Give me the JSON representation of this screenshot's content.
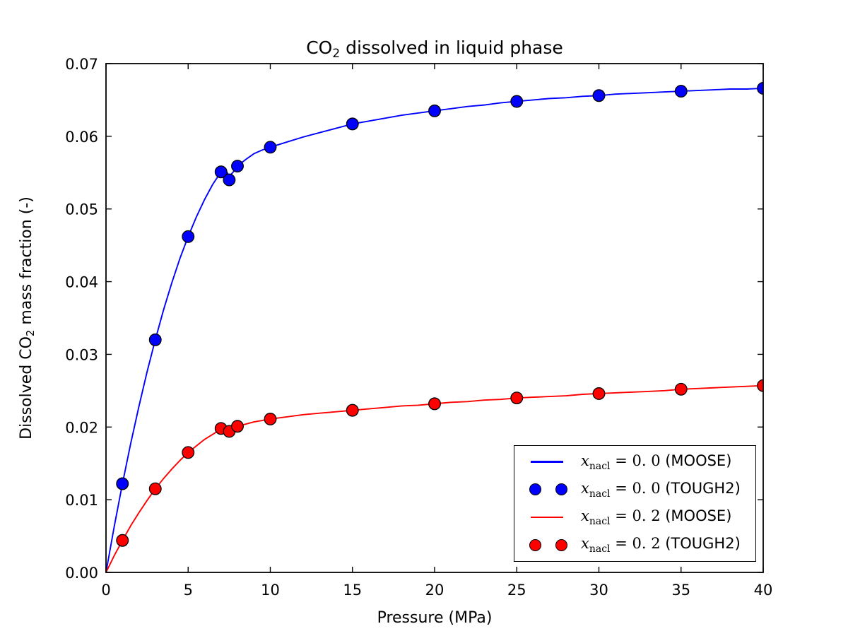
{
  "chart_data": {
    "type": "line",
    "title_prefix": "CO",
    "title_sub": "2",
    "title_suffix": " dissolved in liquid phase",
    "xlabel": "Pressure (MPa)",
    "ylabel_prefix": "Dissolved CO",
    "ylabel_sub": "2",
    "ylabel_suffix": " mass fraction (-)",
    "xlim": [
      0,
      40
    ],
    "ylim": [
      0.0,
      0.07
    ],
    "grid": false,
    "xticks": {
      "values": [
        0,
        5,
        10,
        15,
        20,
        25,
        30,
        35,
        40
      ],
      "labels": [
        "0",
        "5",
        "10",
        "15",
        "20",
        "25",
        "30",
        "35",
        "40"
      ]
    },
    "yticks": {
      "values": [
        0.0,
        0.01,
        0.02,
        0.03,
        0.04,
        0.05,
        0.06,
        0.07
      ],
      "labels": [
        "0.00",
        "0.01",
        "0.02",
        "0.03",
        "0.04",
        "0.05",
        "0.06",
        "0.07"
      ]
    },
    "colors": {
      "xnacl0": "#0000ff",
      "xnacl02": "#ff0000",
      "marker_edge": "#000000"
    },
    "series": [
      {
        "name": "xnacl = 0.0 (MOOSE)",
        "style": "line",
        "color": "#0000ff",
        "x": [
          0,
          0.5,
          1,
          1.5,
          2,
          2.5,
          3,
          3.5,
          4,
          4.5,
          5,
          5.5,
          6,
          6.5,
          7,
          7.25,
          7.5,
          7.75,
          8,
          8.5,
          9,
          9.5,
          10,
          11,
          12,
          13,
          14,
          15,
          16,
          17,
          18,
          19,
          20,
          21,
          22,
          23,
          24,
          25,
          26,
          27,
          28,
          29,
          30,
          31,
          32,
          33,
          34,
          35,
          36,
          37,
          38,
          39,
          40
        ],
        "y": [
          0,
          0.0063,
          0.0122,
          0.0177,
          0.0228,
          0.0276,
          0.032,
          0.0361,
          0.0398,
          0.0432,
          0.0462,
          0.0489,
          0.0513,
          0.0534,
          0.0551,
          0.0555,
          0.0545,
          0.0551,
          0.0559,
          0.0568,
          0.0576,
          0.0581,
          0.0585,
          0.0592,
          0.0599,
          0.0605,
          0.0611,
          0.0617,
          0.0621,
          0.0625,
          0.0629,
          0.0632,
          0.0635,
          0.0638,
          0.0641,
          0.0643,
          0.0646,
          0.0648,
          0.065,
          0.0652,
          0.0653,
          0.0655,
          0.0656,
          0.0658,
          0.0659,
          0.066,
          0.0661,
          0.0662,
          0.0663,
          0.0664,
          0.0665,
          0.0665,
          0.0666
        ]
      },
      {
        "name": "xnacl = 0.0 (TOUGH2)",
        "style": "scatter",
        "color": "#0000ff",
        "x": [
          1,
          3,
          5,
          7,
          7.5,
          8,
          10,
          15,
          20,
          25,
          30,
          35,
          40
        ],
        "y": [
          0.0122,
          0.032,
          0.0462,
          0.0551,
          0.054,
          0.0559,
          0.0585,
          0.0617,
          0.0635,
          0.0648,
          0.0656,
          0.0662,
          0.0666
        ]
      },
      {
        "name": "xnacl = 0.2 (MOOSE)",
        "style": "line",
        "color": "#ff0000",
        "x": [
          0,
          0.5,
          1,
          1.5,
          2,
          2.5,
          3,
          3.5,
          4,
          4.5,
          5,
          5.5,
          6,
          6.5,
          7,
          7.25,
          7.5,
          7.75,
          8,
          8.5,
          9,
          9.5,
          10,
          11,
          12,
          13,
          14,
          15,
          16,
          17,
          18,
          19,
          20,
          21,
          22,
          23,
          24,
          25,
          26,
          27,
          28,
          29,
          30,
          31,
          32,
          33,
          34,
          35,
          36,
          37,
          38,
          39,
          40
        ],
        "y": [
          0,
          0.0023,
          0.0044,
          0.0064,
          0.0082,
          0.0099,
          0.0115,
          0.0129,
          0.0142,
          0.0154,
          0.0165,
          0.0174,
          0.0183,
          0.019,
          0.0197,
          0.0199,
          0.0196,
          0.0198,
          0.0201,
          0.0204,
          0.0207,
          0.0209,
          0.0211,
          0.0214,
          0.0217,
          0.0219,
          0.0221,
          0.0223,
          0.0225,
          0.0227,
          0.0229,
          0.023,
          0.0232,
          0.0234,
          0.0235,
          0.0237,
          0.0238,
          0.024,
          0.0241,
          0.0242,
          0.0243,
          0.0245,
          0.0246,
          0.0247,
          0.0248,
          0.0249,
          0.025,
          0.0252,
          0.0253,
          0.0254,
          0.0255,
          0.0256,
          0.0257
        ]
      },
      {
        "name": "xnacl = 0.2 (TOUGH2)",
        "style": "scatter",
        "color": "#ff0000",
        "x": [
          1,
          3,
          5,
          7,
          7.5,
          8,
          10,
          15,
          20,
          25,
          30,
          35,
          40
        ],
        "y": [
          0.0044,
          0.0115,
          0.0165,
          0.0198,
          0.0194,
          0.0201,
          0.0211,
          0.0223,
          0.0232,
          0.024,
          0.0246,
          0.0252,
          0.0257
        ]
      }
    ],
    "legend": {
      "position": "lower right",
      "entries": [
        {
          "var": "x",
          "sub": "nacl",
          "eq": " = 0. 0 ",
          "suffix": "(MOOSE)",
          "marker": "line"
        },
        {
          "var": "x",
          "sub": "nacl",
          "eq": " = 0. 0 ",
          "suffix": "(TOUGH2)",
          "marker": "dots"
        },
        {
          "var": "x",
          "sub": "nacl",
          "eq": " = 0. 2 ",
          "suffix": "(MOOSE)",
          "marker": "line"
        },
        {
          "var": "x",
          "sub": "nacl",
          "eq": " = 0. 2 ",
          "suffix": "(TOUGH2)",
          "marker": "dots"
        }
      ]
    }
  }
}
